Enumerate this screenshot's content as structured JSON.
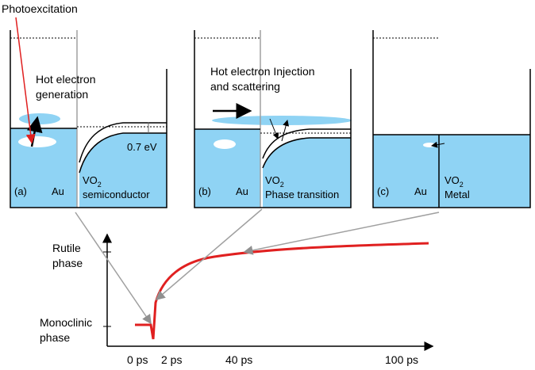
{
  "title": "Photoexcitation",
  "panels": [
    {
      "caption": [
        "Hot electron",
        "generation"
      ],
      "barrier": "0.7 eV",
      "tag": "(a)",
      "metal": "Au",
      "oxide": {
        "main": "VO",
        "sub": "2"
      },
      "state": "semiconductor"
    },
    {
      "caption": [
        "Hot electron Injection",
        "and scattering"
      ],
      "tag": "(b)",
      "metal": "Au",
      "oxide": {
        "main": "VO",
        "sub": "2"
      },
      "state": "Phase transition"
    },
    {
      "tag": "(c)",
      "metal": "Au",
      "oxide": {
        "main": "VO",
        "sub": "2"
      },
      "state": "Metal"
    }
  ],
  "graph": {
    "y_labels": [
      [
        "Rutile",
        "phase"
      ],
      [
        "Monoclinic",
        "phase"
      ]
    ],
    "x_labels": [
      "0 ps",
      "2 ps",
      "40 ps",
      "100 ps"
    ]
  }
}
